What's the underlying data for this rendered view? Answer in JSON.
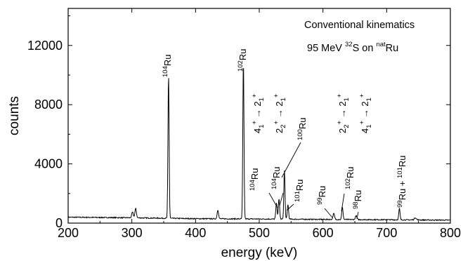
{
  "chart_data": {
    "type": "line",
    "xlabel": "energy (keV)",
    "ylabel": "counts",
    "xlim": [
      200,
      800
    ],
    "ylim": [
      0,
      14500
    ],
    "xticks": [
      200,
      300,
      400,
      500,
      600,
      700,
      800
    ],
    "xtick_labels": [
      "200",
      "300",
      "400",
      "500",
      "600",
      "700",
      "800"
    ],
    "yticks": [
      0,
      4000,
      8000,
      12000
    ],
    "ytick_labels": [
      "0",
      "4000",
      "8000",
      "12000"
    ],
    "grid": false,
    "annotation_lines": [
      "Conventional kinematics",
      "95 MeV 32S on natRu"
    ],
    "baseline": [
      [
        200,
        400
      ],
      [
        300,
        360
      ],
      [
        400,
        300
      ],
      [
        500,
        280
      ],
      [
        600,
        250
      ],
      [
        700,
        230
      ],
      [
        800,
        200
      ]
    ],
    "peaks": [
      {
        "x": 301,
        "y": 380,
        "w": 1.2
      },
      {
        "x": 306,
        "y": 620,
        "w": 1.2
      },
      {
        "x": 357.6,
        "y": 9700,
        "w": 0.9
      },
      {
        "x": 435,
        "y": 600,
        "w": 1.1
      },
      {
        "x": 475.1,
        "y": 10700,
        "w": 0.9
      },
      {
        "x": 527,
        "y": 1100,
        "w": 1.0
      },
      {
        "x": 531,
        "y": 1350,
        "w": 1.0
      },
      {
        "x": 539.5,
        "y": 3300,
        "w": 0.9
      },
      {
        "x": 545,
        "y": 1000,
        "w": 1.0
      },
      {
        "x": 617,
        "y": 400,
        "w": 1.2
      },
      {
        "x": 630.5,
        "y": 850,
        "w": 1.0
      },
      {
        "x": 652,
        "y": 250,
        "w": 1.2
      },
      {
        "x": 720,
        "y": 750,
        "w": 1.0
      },
      {
        "x": 745,
        "y": 150,
        "w": 1.5
      }
    ],
    "labels": {
      "ru104": {
        "sup": "104",
        "base": "Ru"
      },
      "ru102": {
        "sup": "102",
        "base": "Ru"
      },
      "ru104b": {
        "sup": "104",
        "base": "Ru"
      },
      "ru104c": {
        "sup": "104",
        "base": "Ru"
      },
      "ru100": {
        "sup": "100",
        "base": "Ru"
      },
      "ru101": {
        "sup": "101",
        "base": "Ru"
      },
      "ru99": {
        "sup": "99",
        "base": "Ru"
      },
      "ru102b": {
        "sup": "102",
        "base": "Ru"
      },
      "ru98": {
        "sup": "98",
        "base": "Ru"
      },
      "ru99ru101": {
        "a_sup": "99",
        "a_base": "Ru + ",
        "b_sup": "101",
        "b_base": "Ru"
      }
    },
    "transitions": [
      {
        "from": "4",
        "from_sub": "1",
        "to": "2",
        "to_sub": "1",
        "sign": "+"
      },
      {
        "from": "2",
        "from_sub": "2",
        "to": "2",
        "to_sub": "1",
        "sign": "+"
      },
      {
        "from": "2",
        "from_sub": "2",
        "to": "2",
        "to_sub": "1",
        "sign": "+"
      },
      {
        "from": "4",
        "from_sub": "1",
        "to": "2",
        "to_sub": "1",
        "sign": "+"
      }
    ]
  }
}
